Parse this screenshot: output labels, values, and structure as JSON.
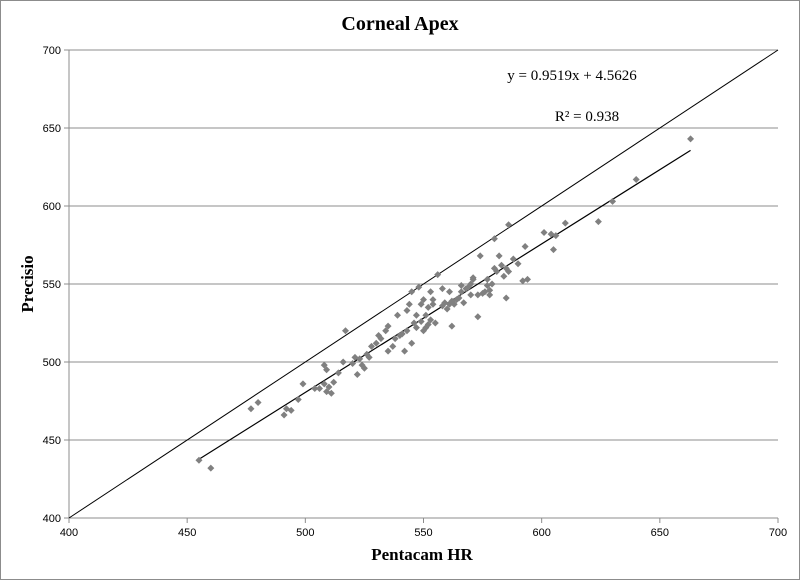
{
  "chart_data": {
    "type": "scatter",
    "title": "Corneal Apex",
    "xlabel": "Pentacam HR",
    "ylabel": "Precisio",
    "xlim": [
      400,
      700
    ],
    "ylim": [
      400,
      700
    ],
    "x_ticks": [
      400,
      450,
      500,
      550,
      600,
      650,
      700
    ],
    "y_ticks": [
      400,
      450,
      500,
      550,
      600,
      650,
      700
    ],
    "grid": "horizontal",
    "colors": {
      "points": "#808080",
      "trendline": "#000000",
      "identity_line": "#000000",
      "grid": "#8c8c8c"
    },
    "annotations": {
      "equation": "y = 0.9519x + 4.5626",
      "r_squared": "R² = 0.938"
    },
    "trendline": {
      "slope": 0.9519,
      "intercept": 4.5626,
      "x_range": [
        455,
        663
      ]
    },
    "identity_line": {
      "from": [
        400,
        400
      ],
      "to": [
        700,
        700
      ]
    },
    "points": [
      [
        455,
        437
      ],
      [
        460,
        432
      ],
      [
        477,
        470
      ],
      [
        480,
        474
      ],
      [
        491,
        466
      ],
      [
        492,
        470
      ],
      [
        494,
        469
      ],
      [
        497,
        476
      ],
      [
        499,
        486
      ],
      [
        504,
        483
      ],
      [
        506,
        483
      ],
      [
        508,
        486
      ],
      [
        508,
        498
      ],
      [
        509,
        495
      ],
      [
        509,
        481
      ],
      [
        510,
        484
      ],
      [
        511,
        480
      ],
      [
        512,
        487
      ],
      [
        514,
        493
      ],
      [
        516,
        500
      ],
      [
        517,
        520
      ],
      [
        520,
        499
      ],
      [
        521,
        503
      ],
      [
        522,
        492
      ],
      [
        523,
        502
      ],
      [
        524,
        498
      ],
      [
        525,
        496
      ],
      [
        526,
        505
      ],
      [
        527,
        503
      ],
      [
        528,
        510
      ],
      [
        530,
        512
      ],
      [
        531,
        517
      ],
      [
        532,
        515
      ],
      [
        534,
        520
      ],
      [
        535,
        507
      ],
      [
        535,
        523
      ],
      [
        537,
        510
      ],
      [
        538,
        515
      ],
      [
        539,
        530
      ],
      [
        540,
        517
      ],
      [
        541,
        518
      ],
      [
        542,
        507
      ],
      [
        543,
        520
      ],
      [
        543,
        533
      ],
      [
        544,
        537
      ],
      [
        545,
        545
      ],
      [
        545,
        512
      ],
      [
        546,
        525
      ],
      [
        547,
        522
      ],
      [
        547,
        530
      ],
      [
        548,
        548
      ],
      [
        549,
        526
      ],
      [
        549,
        537
      ],
      [
        550,
        520
      ],
      [
        550,
        540
      ],
      [
        551,
        522
      ],
      [
        551,
        530
      ],
      [
        552,
        524
      ],
      [
        552,
        535
      ],
      [
        553,
        527
      ],
      [
        553,
        545
      ],
      [
        554,
        540
      ],
      [
        554,
        537
      ],
      [
        555,
        525
      ],
      [
        556,
        556
      ],
      [
        558,
        536
      ],
      [
        558,
        547
      ],
      [
        559,
        538
      ],
      [
        560,
        534
      ],
      [
        561,
        537
      ],
      [
        561,
        545
      ],
      [
        562,
        523
      ],
      [
        562,
        539
      ],
      [
        563,
        537
      ],
      [
        564,
        540
      ],
      [
        565,
        541
      ],
      [
        566,
        545
      ],
      [
        566,
        549
      ],
      [
        567,
        538
      ],
      [
        568,
        547
      ],
      [
        569,
        548
      ],
      [
        570,
        543
      ],
      [
        570,
        550
      ],
      [
        571,
        553
      ],
      [
        571,
        554
      ],
      [
        573,
        529
      ],
      [
        573,
        543
      ],
      [
        574,
        568
      ],
      [
        575,
        544
      ],
      [
        576,
        545
      ],
      [
        577,
        549
      ],
      [
        577,
        553
      ],
      [
        578,
        546
      ],
      [
        578,
        543
      ],
      [
        579,
        550
      ],
      [
        580,
        560
      ],
      [
        580,
        579
      ],
      [
        581,
        558
      ],
      [
        582,
        568
      ],
      [
        583,
        562
      ],
      [
        584,
        555
      ],
      [
        585,
        541
      ],
      [
        585,
        560
      ],
      [
        586,
        558
      ],
      [
        586,
        588
      ],
      [
        588,
        566
      ],
      [
        590,
        563
      ],
      [
        592,
        552
      ],
      [
        593,
        574
      ],
      [
        594,
        553
      ],
      [
        601,
        583
      ],
      [
        604,
        582
      ],
      [
        605,
        572
      ],
      [
        606,
        581
      ],
      [
        610,
        589
      ],
      [
        624,
        590
      ],
      [
        630,
        603
      ],
      [
        640,
        617
      ],
      [
        663,
        643
      ]
    ]
  }
}
